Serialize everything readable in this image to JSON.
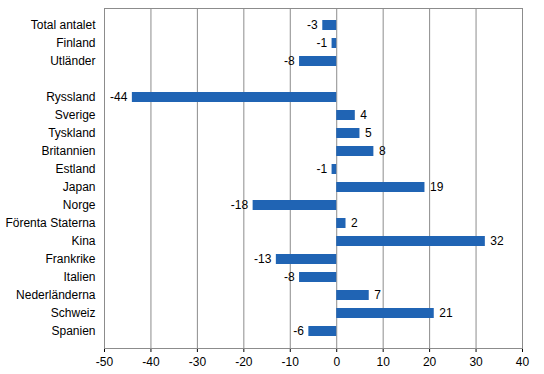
{
  "chart_data": {
    "type": "bar",
    "orientation": "horizontal",
    "categories": [
      "Total antalet",
      "Finland",
      "Utländer",
      null,
      "Ryssland",
      "Sverige",
      "Tyskland",
      "Britannien",
      "Estland",
      "Japan",
      "Norge",
      "Förenta Staterna",
      "Kina",
      "Frankrike",
      "Italien",
      "Nederländerna",
      "Schweiz",
      "Spanien"
    ],
    "values": [
      -3,
      -1,
      -8,
      null,
      -44,
      4,
      5,
      8,
      -1,
      19,
      -18,
      2,
      32,
      -13,
      -8,
      7,
      21,
      -6
    ],
    "color": "#2064b4",
    "xlim": [
      -50,
      40
    ],
    "xticks": [
      -50,
      -40,
      -30,
      -20,
      -10,
      0,
      10,
      20,
      30,
      40
    ],
    "grid": true,
    "data_labels": true
  }
}
